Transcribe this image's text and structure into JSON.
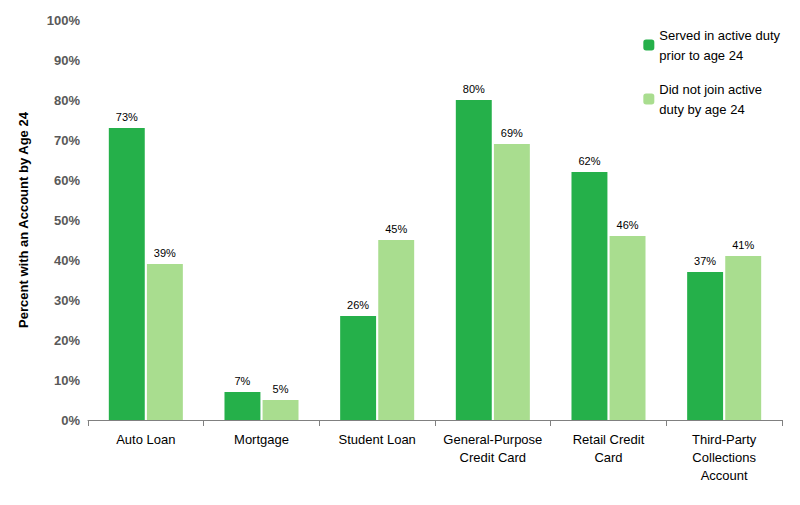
{
  "chart_data": {
    "type": "bar",
    "y_label": "Percent with an Account by Age 24",
    "categories": [
      "Auto Loan",
      "Mortgage",
      "Student Loan",
      "General-Purpose\nCredit Card",
      "Retail Credit\nCard",
      "Third-Party\nCollections\nAccount"
    ],
    "series": [
      {
        "name": "Served in active duty\nprior to age 24",
        "color": "#25b04a",
        "values": [
          73,
          7,
          26,
          80,
          62,
          37
        ],
        "value_labels": [
          "73%",
          "7%",
          "26%",
          "80%",
          "62%",
          "37%"
        ]
      },
      {
        "name": "Did not join active\nduty by age 24",
        "color": "#a9dd8f",
        "values": [
          39,
          5,
          45,
          69,
          46,
          41
        ],
        "value_labels": [
          "39%",
          "5%",
          "45%",
          "69%",
          "46%",
          "41%"
        ]
      }
    ],
    "ylim": [
      0,
      100
    ],
    "yticks": [
      {
        "value": 0,
        "label": "0%"
      },
      {
        "value": 10,
        "label": "10%"
      },
      {
        "value": 20,
        "label": "20%"
      },
      {
        "value": 30,
        "label": "30%"
      },
      {
        "value": 40,
        "label": "40%"
      },
      {
        "value": 50,
        "label": "50%"
      },
      {
        "value": 60,
        "label": "60%"
      },
      {
        "value": 70,
        "label": "70%"
      },
      {
        "value": 80,
        "label": "80%"
      },
      {
        "value": 90,
        "label": "90%"
      },
      {
        "value": 100,
        "label": "100%"
      }
    ],
    "grid": false,
    "legend": "top-right",
    "data_labels": true
  }
}
